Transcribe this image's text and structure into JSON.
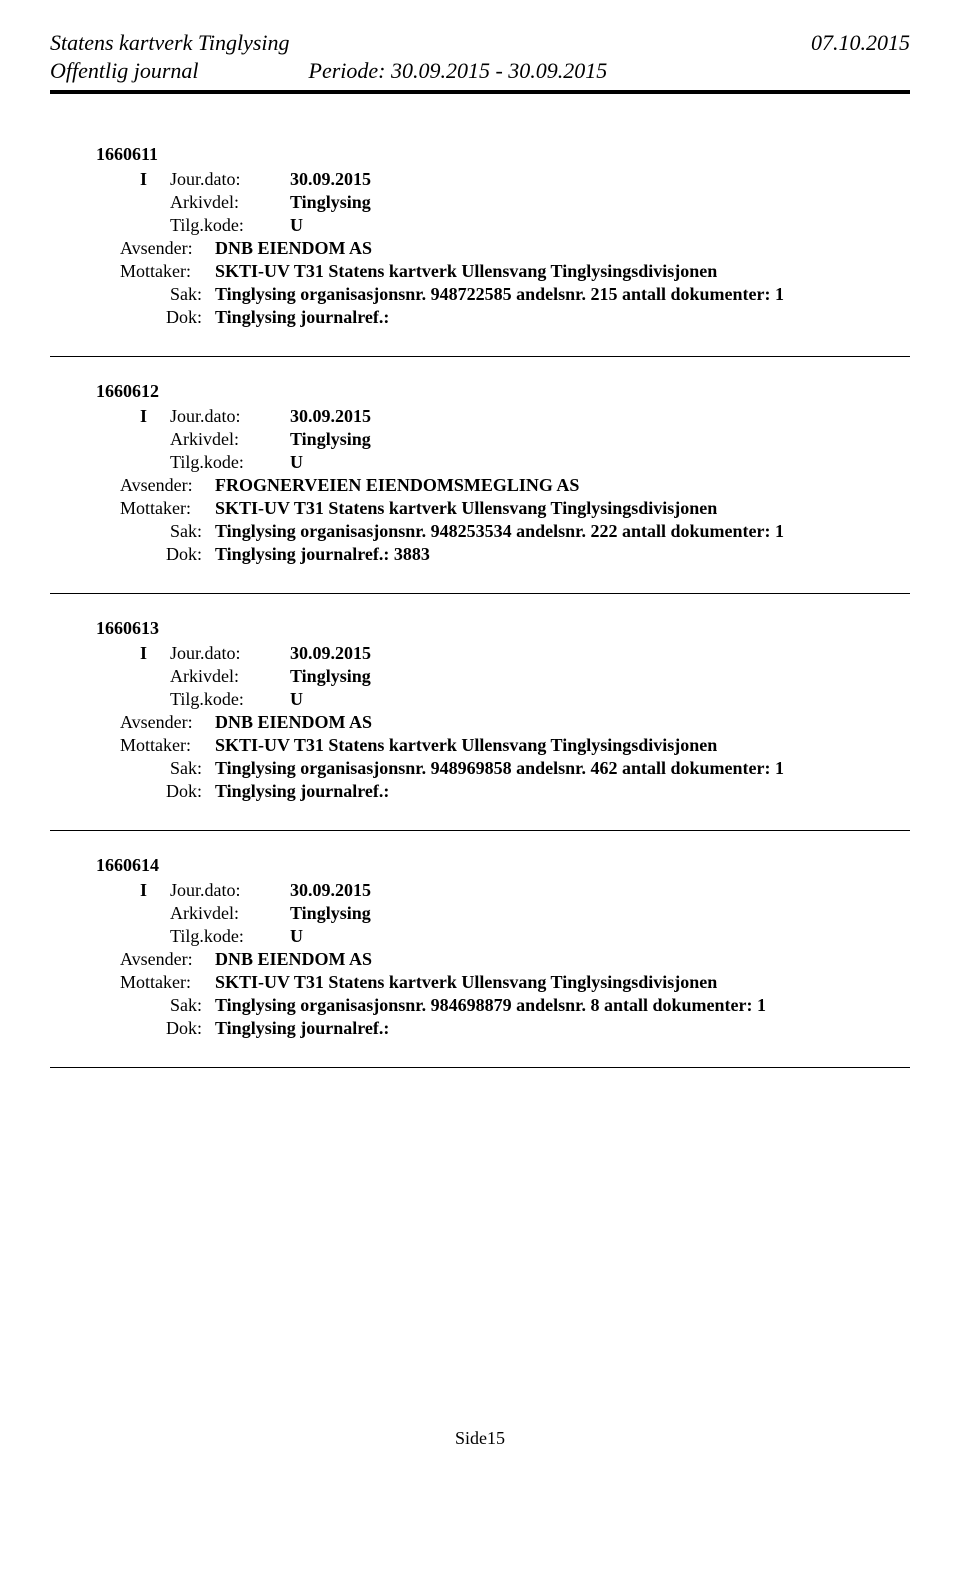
{
  "header": {
    "title": "Statens kartverk Tinglysing",
    "date": "07.10.2015",
    "subtitle": "Offentlig journal",
    "period": "Periode: 30.09.2015 - 30.09.2015"
  },
  "labels": {
    "jourdato": "Jour.dato:",
    "arkivdel": "Arkivdel:",
    "tilgkode": "Tilg.kode:",
    "avsender": "Avsender:",
    "mottaker": "Mottaker:",
    "sak": "Sak:",
    "dok": "Dok:"
  },
  "entries": [
    {
      "id": "1660611",
      "type": "I",
      "jourdato": "30.09.2015",
      "arkivdel": "Tinglysing",
      "tilgkode": "U",
      "avsender": "DNB EIENDOM AS",
      "mottaker": "SKTI-UV T31 Statens kartverk Ullensvang Tinglysingsdivisjonen",
      "sak": "Tinglysing organisasjonsnr. 948722585 andelsnr. 215 antall dokumenter: 1",
      "dok": "Tinglysing journalref.:"
    },
    {
      "id": "1660612",
      "type": "I",
      "jourdato": "30.09.2015",
      "arkivdel": "Tinglysing",
      "tilgkode": "U",
      "avsender": "FROGNERVEIEN EIENDOMSMEGLING AS",
      "mottaker": "SKTI-UV T31 Statens kartverk Ullensvang Tinglysingsdivisjonen",
      "sak": "Tinglysing organisasjonsnr. 948253534 andelsnr. 222 antall dokumenter: 1",
      "dok": "Tinglysing journalref.: 3883"
    },
    {
      "id": "1660613",
      "type": "I",
      "jourdato": "30.09.2015",
      "arkivdel": "Tinglysing",
      "tilgkode": "U",
      "avsender": "DNB EIENDOM AS",
      "mottaker": "SKTI-UV T31 Statens kartverk Ullensvang Tinglysingsdivisjonen",
      "sak": "Tinglysing organisasjonsnr. 948969858 andelsnr. 462 antall dokumenter: 1",
      "dok": "Tinglysing journalref.:"
    },
    {
      "id": "1660614",
      "type": "I",
      "jourdato": "30.09.2015",
      "arkivdel": "Tinglysing",
      "tilgkode": "U",
      "avsender": "DNB EIENDOM AS",
      "mottaker": "SKTI-UV T31 Statens kartverk Ullensvang Tinglysingsdivisjonen",
      "sak": "Tinglysing organisasjonsnr. 984698879 andelsnr. 8 antall dokumenter: 1",
      "dok": "Tinglysing journalref.:"
    }
  ],
  "footer": "Side15"
}
